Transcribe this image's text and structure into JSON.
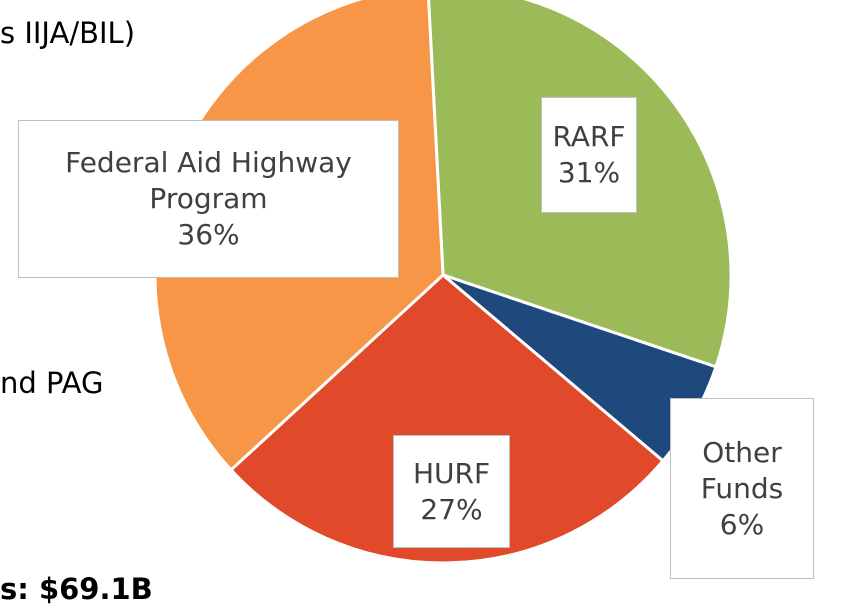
{
  "side_text": [
    "s IIJA/BIL)",
    "nd PAG",
    "s: $69.1B"
  ],
  "chart_data": {
    "type": "pie",
    "categories": [
      "RARF",
      "Other Funds",
      "HURF",
      "Federal Aid Highway Program"
    ],
    "values": [
      31,
      6,
      27,
      36
    ],
    "value_labels": [
      "31%",
      "6%",
      "27%",
      "36%"
    ],
    "colors": [
      "#9bbb59",
      "#1f497d",
      "#e04a2a",
      "#f79646"
    ]
  }
}
